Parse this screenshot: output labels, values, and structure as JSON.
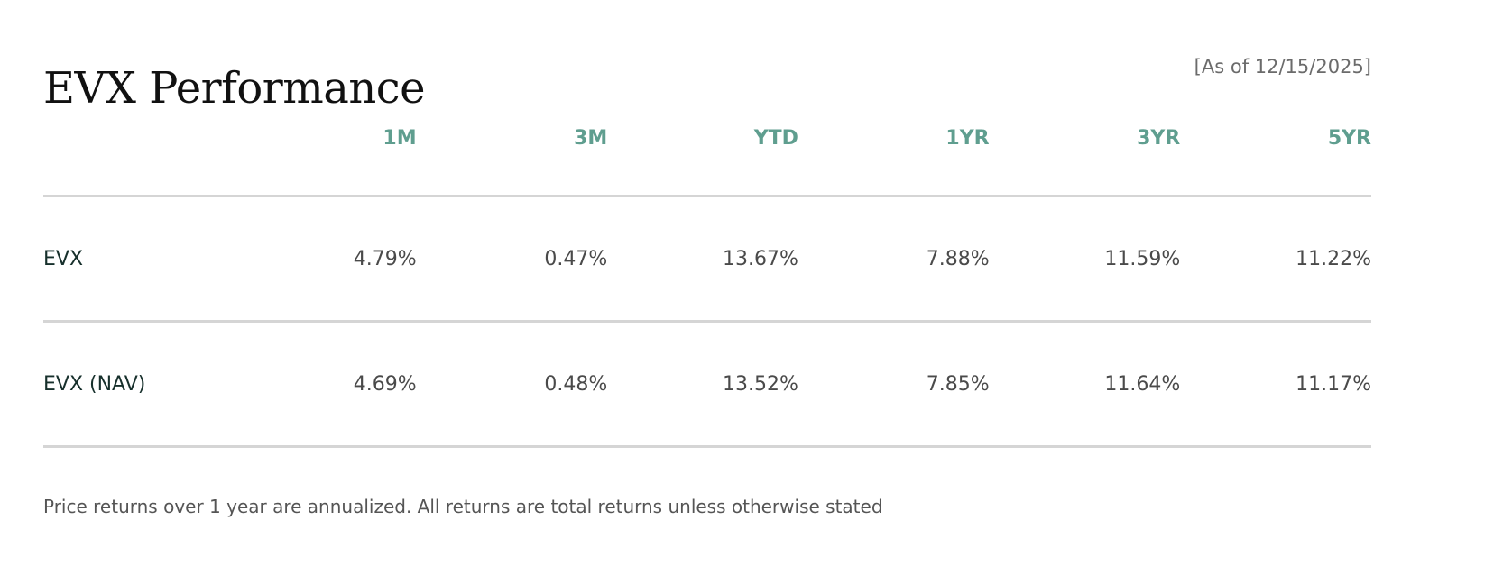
{
  "title": "EVX Performance",
  "as_of": "[As of 12/15/2025]",
  "table": {
    "columns": [
      "",
      "1M",
      "3M",
      "YTD",
      "1YR",
      "3YR",
      "5YR"
    ],
    "rows": [
      {
        "label": "EVX",
        "values": [
          "4.79%",
          "0.47%",
          "13.67%",
          "7.88%",
          "11.59%",
          "11.22%"
        ]
      },
      {
        "label": "EVX (NAV)",
        "values": [
          "4.69%",
          "0.48%",
          "13.52%",
          "7.85%",
          "11.64%",
          "11.17%"
        ]
      }
    ]
  },
  "footnote": "Price returns over 1 year are annualized. All returns are total returns unless otherwise stated",
  "colors": {
    "header": "#5f9e8f",
    "row_label": "#17302c",
    "divider": "#d5d5d5"
  }
}
